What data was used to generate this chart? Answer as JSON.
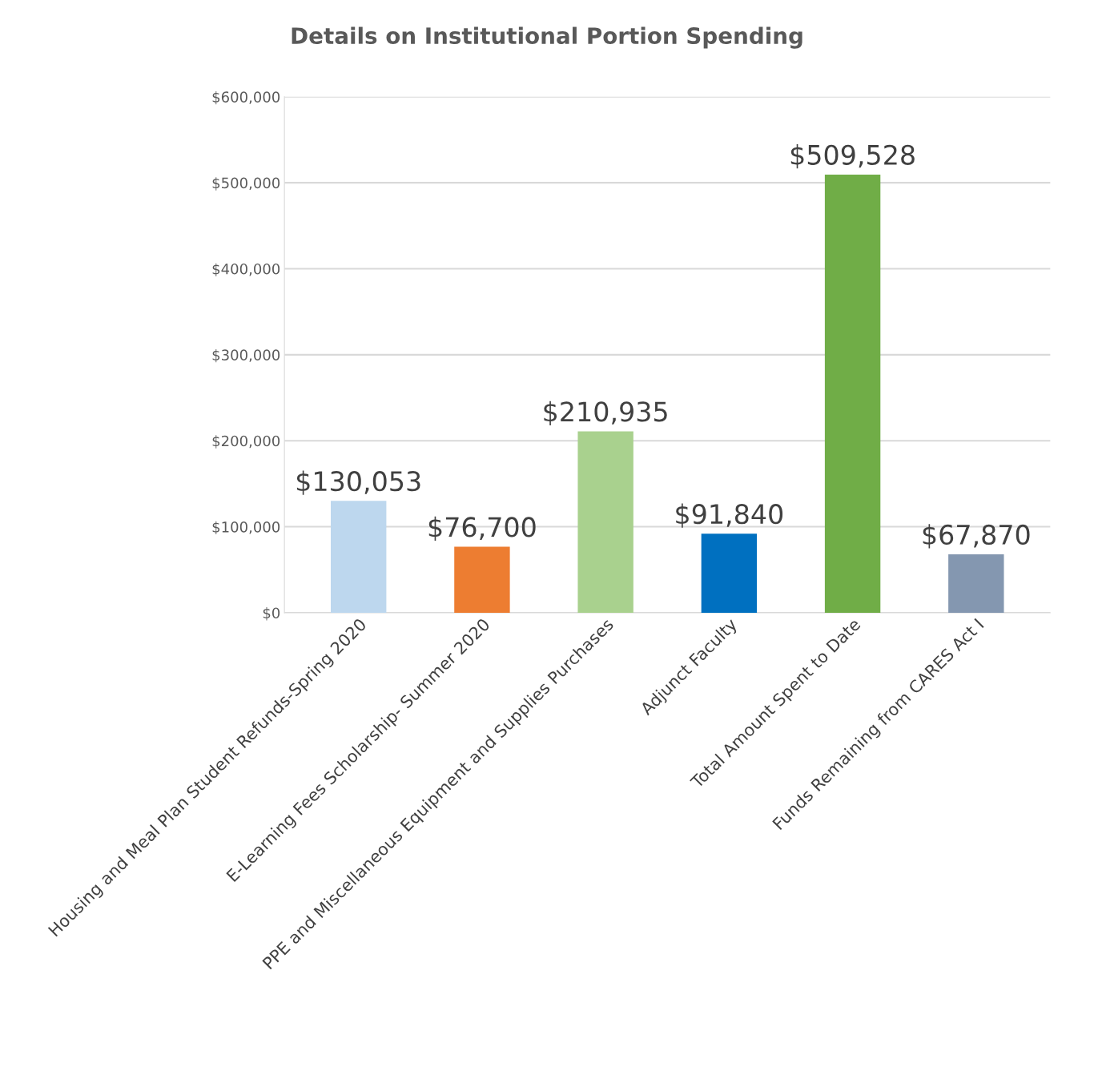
{
  "chart_data": {
    "type": "bar",
    "title": "Details on Institutional Portion Spending",
    "categories": [
      "Housing and Meal Plan Student Refunds-Spring 2020",
      "E-Learning Fees Scholarship- Summer 2020",
      "PPE and Miscellaneous Equipment and Supplies Purchases",
      "Adjunct Faculty",
      "Total Amount Spent to Date",
      "Funds Remaining from CARES Act I"
    ],
    "values": [
      130053,
      76700,
      210935,
      91840,
      509528,
      67870
    ],
    "colors": [
      "#bdd7ee",
      "#ed7d31",
      "#a9d18e",
      "#0070c0",
      "#70ad47",
      "#8497b0"
    ],
    "value_labels": [
      "$130,053",
      "$76,700",
      "$210,935",
      "$91,840",
      "$509,528",
      "$67,870"
    ],
    "ylim": [
      0,
      600000
    ],
    "yticks": [
      {
        "value": 0,
        "label": "$0"
      },
      {
        "value": 100000,
        "label": "$100,000"
      },
      {
        "value": 200000,
        "label": "$200,000"
      },
      {
        "value": 300000,
        "label": "$300,000"
      },
      {
        "value": 400000,
        "label": "$400,000"
      },
      {
        "value": 500000,
        "label": "$500,000"
      },
      {
        "value": 600000,
        "label": "$600,000"
      }
    ],
    "grid": "y",
    "legend": false
  }
}
